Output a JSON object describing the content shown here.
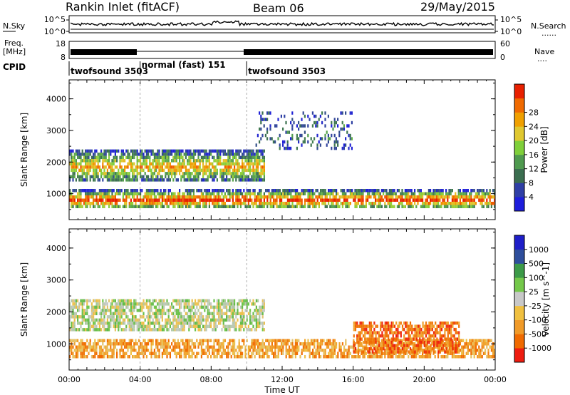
{
  "header": {
    "station": "Rankin Inlet (fitACF)",
    "beam": "Beam 06",
    "date": "29/May/2015"
  },
  "aux_labels": {
    "nsky": "N.Sky",
    "nsearch": "N.Search",
    "freq": "Freq.",
    "freq_unit": "[MHz]",
    "nave": "Nave",
    "cpid": "CPID",
    "dots": "......",
    "dots_short": "...."
  },
  "noise_panel": {
    "left_ticks": [
      "10^5",
      "10^0"
    ],
    "right_ticks": [
      "10^5",
      "10^0"
    ]
  },
  "freq_panel": {
    "left_ticks": [
      "18",
      "8"
    ],
    "right_ticks": [
      "60",
      "0"
    ]
  },
  "cpid_modes": [
    {
      "label": "twofsound 3503",
      "start_hour": 0.0
    },
    {
      "label": "normal (fast) 151",
      "start_hour": 4.0
    },
    {
      "label": "twofsound 3503",
      "start_hour": 10.0
    }
  ],
  "colors": {
    "power_scale": [
      "#1e1edc",
      "#2f3fa6",
      "#3b6e50",
      "#4f9a4f",
      "#7fcf3a",
      "#e0c830",
      "#f0a000",
      "#f06a00",
      "#e82000"
    ],
    "velocity_scale": [
      "#ee1c10",
      "#f06a00",
      "#f09a28",
      "#f0c040",
      "#c8c8c8",
      "#74c84a",
      "#3c9a48",
      "#2e4e9c",
      "#1e1ec8"
    ]
  },
  "chart_data": [
    {
      "type": "heatmap",
      "title": "Power",
      "xlabel": "Time UT",
      "ylabel": "Slant Range [km]",
      "colorbar_label": "Power [dB]",
      "colorbar_ticks": [
        "4",
        "8",
        "12",
        "16",
        "20",
        "24",
        "28"
      ],
      "xlim_hours": [
        0,
        24
      ],
      "ylim_km": [
        180,
        4600
      ],
      "x_ticks": [
        "00:00",
        "04:00",
        "08:00",
        "12:00",
        "16:00",
        "20:00",
        "00:00"
      ],
      "y_ticks": [
        "1000",
        "2000",
        "3000",
        "4000"
      ],
      "features": [
        {
          "name": "near-range band",
          "range_km": [
            550,
            1150
          ],
          "hours": [
            0,
            24
          ],
          "peak_db": 28
        },
        {
          "name": "mid-range band",
          "range_km": [
            1400,
            2400
          ],
          "hours": [
            0,
            11
          ],
          "peak_db": 20
        },
        {
          "name": "far-range scatter",
          "range_km": [
            2400,
            3600
          ],
          "hours": [
            10.5,
            16
          ],
          "peak_db": 8
        }
      ]
    },
    {
      "type": "heatmap",
      "title": "Velocity",
      "xlabel": "Time UT",
      "ylabel": "Slant Range [km]",
      "colorbar_label": "Velocity [m s^-1]",
      "colorbar_ticks": [
        "1000",
        "500",
        "100",
        "25",
        "-25",
        "-100",
        "-500",
        "-1000"
      ],
      "xlim_hours": [
        0,
        24
      ],
      "ylim_km": [
        180,
        4600
      ],
      "x_ticks": [
        "00:00",
        "04:00",
        "08:00",
        "12:00",
        "16:00",
        "20:00",
        "00:00"
      ],
      "y_ticks": [
        "1000",
        "2000",
        "3000",
        "4000"
      ],
      "features": [
        {
          "name": "near-range band",
          "range_km": [
            550,
            1150
          ],
          "hours": [
            0,
            24
          ],
          "velocity_ms": -250
        },
        {
          "name": "mid-range ground scatter",
          "range_km": [
            1400,
            2400
          ],
          "hours": [
            0,
            11
          ],
          "velocity_ms": 0
        },
        {
          "name": "sunward flow patch",
          "range_km": [
            700,
            1700
          ],
          "hours": [
            16,
            22
          ],
          "velocity_ms": -500
        }
      ]
    }
  ]
}
